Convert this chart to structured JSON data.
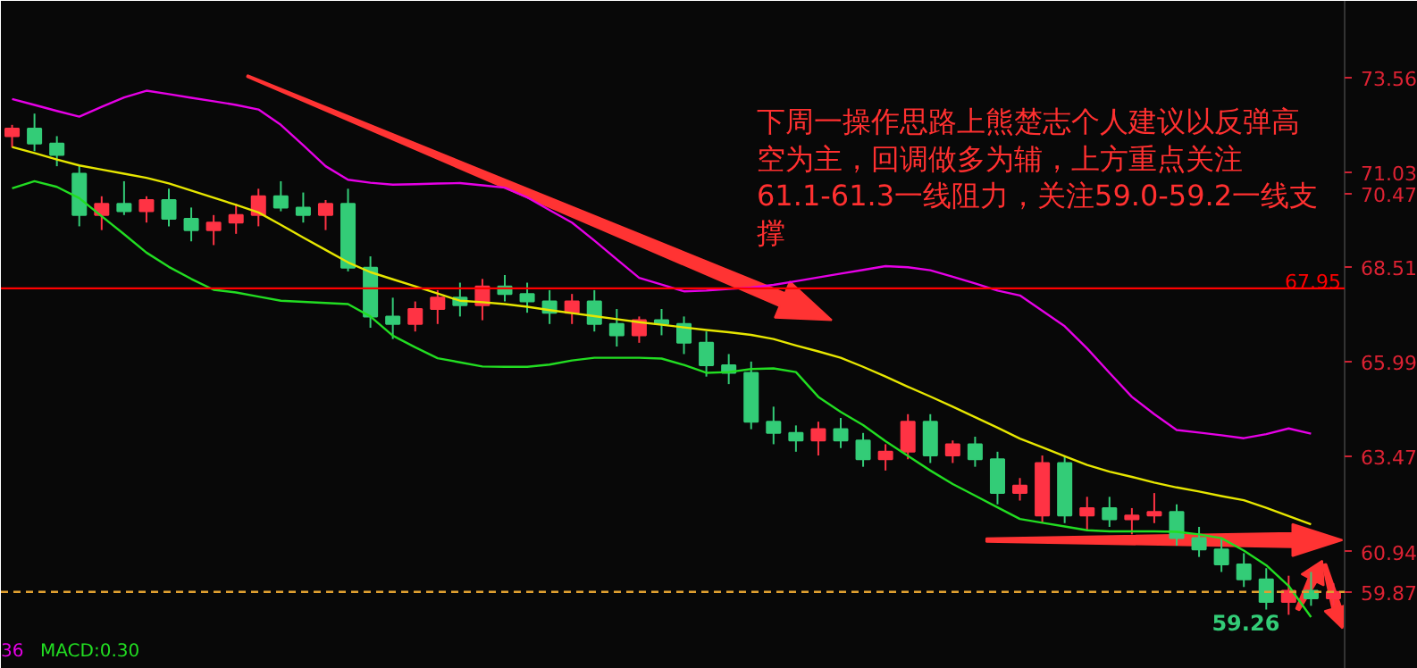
{
  "chart_data": {
    "type": "candlestick",
    "categories": [
      null,
      null,
      null,
      null,
      null,
      null,
      null,
      null,
      null,
      null,
      null,
      null,
      null,
      null,
      null,
      null,
      null,
      null,
      null,
      null,
      null,
      null,
      null,
      null,
      null,
      null,
      null,
      null,
      null,
      null,
      null,
      null,
      null,
      null,
      null,
      null,
      null,
      null,
      null,
      null,
      null,
      null,
      null,
      null,
      null,
      null,
      null,
      null,
      null,
      null,
      null,
      null,
      null,
      null,
      null,
      null,
      null,
      null,
      null,
      null
    ],
    "ohlc": [
      [
        72.0,
        72.3,
        71.7,
        72.2
      ],
      [
        72.2,
        72.6,
        71.6,
        71.8
      ],
      [
        71.8,
        72.0,
        71.2,
        71.5
      ],
      [
        71.0,
        71.2,
        69.6,
        69.9
      ],
      [
        69.9,
        70.4,
        69.5,
        70.2
      ],
      [
        70.2,
        70.8,
        69.9,
        70.0
      ],
      [
        70.0,
        70.4,
        69.7,
        70.3
      ],
      [
        70.3,
        70.6,
        69.6,
        69.8
      ],
      [
        69.8,
        70.1,
        69.2,
        69.5
      ],
      [
        69.5,
        69.9,
        69.1,
        69.7
      ],
      [
        69.7,
        70.2,
        69.4,
        69.9
      ],
      [
        69.9,
        70.6,
        69.6,
        70.4
      ],
      [
        70.4,
        70.8,
        70.0,
        70.1
      ],
      [
        70.1,
        70.5,
        69.7,
        69.9
      ],
      [
        69.9,
        70.3,
        69.5,
        70.2
      ],
      [
        70.2,
        70.6,
        68.4,
        68.5
      ],
      [
        68.5,
        68.8,
        66.9,
        67.2
      ],
      [
        67.2,
        67.7,
        66.6,
        67.0
      ],
      [
        67.0,
        67.6,
        66.8,
        67.4
      ],
      [
        67.4,
        67.9,
        67.0,
        67.7
      ],
      [
        67.7,
        68.1,
        67.2,
        67.5
      ],
      [
        67.5,
        68.2,
        67.1,
        68.0
      ],
      [
        68.0,
        68.3,
        67.6,
        67.8
      ],
      [
        67.8,
        68.1,
        67.3,
        67.6
      ],
      [
        67.6,
        67.9,
        67.0,
        67.3
      ],
      [
        67.3,
        67.8,
        67.0,
        67.6
      ],
      [
        67.6,
        67.9,
        66.8,
        67.0
      ],
      [
        67.0,
        67.4,
        66.4,
        66.7
      ],
      [
        66.7,
        67.2,
        66.5,
        67.1
      ],
      [
        67.1,
        67.4,
        66.7,
        67.0
      ],
      [
        67.0,
        67.2,
        66.2,
        66.5
      ],
      [
        66.5,
        66.8,
        65.6,
        65.9
      ],
      [
        65.9,
        66.2,
        65.4,
        65.7
      ],
      [
        65.7,
        66.0,
        64.2,
        64.4
      ],
      [
        64.4,
        64.8,
        63.8,
        64.1
      ],
      [
        64.1,
        64.3,
        63.6,
        63.9
      ],
      [
        63.9,
        64.4,
        63.5,
        64.2
      ],
      [
        64.2,
        64.5,
        63.7,
        63.9
      ],
      [
        63.9,
        64.1,
        63.2,
        63.4
      ],
      [
        63.4,
        63.8,
        63.1,
        63.6
      ],
      [
        63.6,
        64.6,
        63.4,
        64.4
      ],
      [
        64.4,
        64.6,
        63.3,
        63.5
      ],
      [
        63.5,
        63.9,
        63.3,
        63.8
      ],
      [
        63.8,
        64.0,
        63.2,
        63.4
      ],
      [
        63.4,
        63.6,
        62.2,
        62.5
      ],
      [
        62.5,
        62.9,
        62.3,
        62.7
      ],
      [
        61.9,
        63.5,
        61.7,
        63.3
      ],
      [
        63.3,
        63.5,
        61.7,
        61.9
      ],
      [
        61.9,
        62.4,
        61.5,
        62.1
      ],
      [
        62.1,
        62.4,
        61.6,
        61.8
      ],
      [
        61.8,
        62.1,
        61.4,
        61.9
      ],
      [
        61.9,
        62.5,
        61.7,
        62.0
      ],
      [
        62.0,
        62.2,
        61.1,
        61.3
      ],
      [
        61.3,
        61.6,
        60.8,
        61.0
      ],
      [
        61.0,
        61.3,
        60.4,
        60.6
      ],
      [
        60.6,
        60.9,
        60.0,
        60.2
      ],
      [
        60.2,
        60.5,
        59.4,
        59.6
      ],
      [
        59.6,
        60.3,
        59.26,
        59.9
      ],
      [
        59.9,
        60.4,
        59.5,
        59.7
      ],
      [
        59.7,
        60.1,
        59.5,
        59.87
      ]
    ],
    "series": [
      {
        "type": "line",
        "color": "#e600e6",
        "values": [
          72.99,
          72.83,
          72.67,
          72.52,
          72.78,
          73.03,
          73.21,
          73.12,
          73.02,
          72.93,
          72.83,
          72.71,
          72.3,
          71.76,
          71.2,
          70.84,
          70.76,
          70.71,
          70.72,
          70.74,
          70.75,
          70.69,
          70.63,
          70.37,
          70.03,
          69.7,
          69.22,
          68.72,
          68.23,
          68.05,
          67.87,
          67.89,
          67.93,
          67.97,
          68.04,
          68.14,
          68.24,
          68.34,
          68.44,
          68.54,
          68.51,
          68.43,
          68.26,
          68.08,
          67.89,
          67.76,
          67.35,
          66.94,
          66.35,
          65.7,
          65.06,
          64.6,
          64.18,
          64.11,
          64.04,
          63.96,
          64.07,
          64.22,
          64.08,
          null
        ]
      },
      {
        "type": "line",
        "color": "#e6e600",
        "values": [
          71.71,
          71.55,
          71.38,
          71.22,
          71.11,
          71.0,
          70.89,
          70.74,
          70.55,
          70.36,
          70.17,
          69.97,
          69.64,
          69.3,
          68.97,
          68.64,
          68.38,
          68.19,
          68.0,
          67.81,
          67.62,
          67.58,
          67.53,
          67.46,
          67.37,
          67.29,
          67.21,
          67.13,
          67.05,
          66.98,
          66.91,
          66.84,
          66.78,
          66.71,
          66.6,
          66.43,
          66.27,
          66.1,
          65.86,
          65.6,
          65.33,
          65.07,
          64.8,
          64.52,
          64.24,
          63.95,
          63.72,
          63.48,
          63.25,
          63.07,
          62.93,
          62.78,
          62.65,
          62.54,
          62.42,
          62.31,
          62.11,
          61.89,
          61.67,
          null
        ]
      },
      {
        "type": "line",
        "color": "#22dd22",
        "values": [
          70.61,
          70.8,
          70.65,
          70.35,
          69.87,
          69.39,
          68.9,
          68.52,
          68.2,
          67.91,
          67.84,
          67.73,
          67.62,
          67.59,
          67.56,
          67.53,
          67.2,
          66.69,
          66.38,
          66.09,
          65.98,
          65.87,
          65.86,
          65.86,
          65.92,
          66.03,
          66.1,
          66.1,
          66.1,
          66.08,
          65.91,
          65.7,
          65.72,
          65.8,
          65.82,
          65.72,
          65.06,
          64.66,
          64.31,
          63.88,
          63.49,
          63.1,
          62.74,
          62.43,
          62.12,
          61.81,
          61.71,
          61.61,
          61.51,
          61.48,
          61.48,
          61.48,
          61.47,
          61.4,
          61.3,
          60.97,
          60.58,
          60.03,
          59.2,
          null
        ]
      }
    ],
    "ylim": [
      57.82,
      75.6
    ],
    "yticks": [
      73.56,
      71.03,
      70.47,
      68.51,
      65.99,
      63.47,
      60.94
    ],
    "tick_labels": "y",
    "ref_lines": [
      {
        "axis": "y",
        "value": 67.95,
        "label": "67.95",
        "color": "#ff0000",
        "line_style": "solid"
      },
      {
        "axis": "y",
        "value": 59.87,
        "label": "59.87",
        "color": "#e0a030",
        "line_style": "dashed"
      }
    ],
    "annotations": [
      "下周一操作思路上熊楚志个人建议以反弹高空为主，回调做多为辅，上方重点关注61.1-61.3一线阻力，关注59.0-59.2一线支撑",
      "59.26",
      "36",
      "MACD:0.30"
    ]
  }
}
